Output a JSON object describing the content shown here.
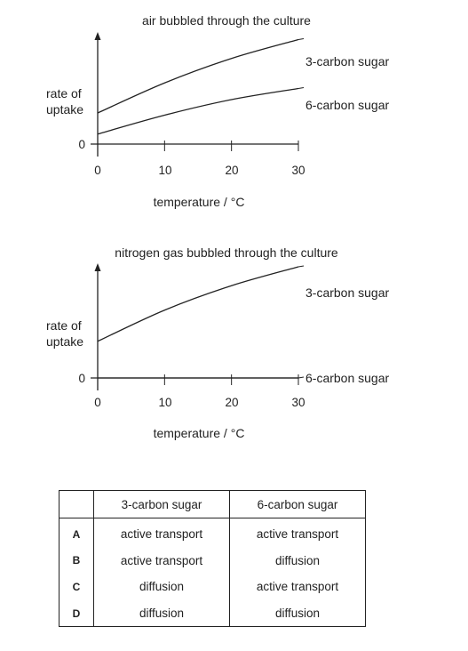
{
  "chart_data": [
    {
      "type": "line",
      "title": "air bubbled through the culture",
      "xlabel": "temperature / °C",
      "ylabel": "rate of uptake",
      "x_ticks": [
        "0",
        "10",
        "20",
        "30"
      ],
      "y_ticks": [
        "0"
      ],
      "xlim": [
        0,
        30
      ],
      "series": [
        {
          "name": "3-carbon sugar",
          "x": [
            0,
            10,
            20,
            30
          ],
          "y": [
            2.8,
            5.5,
            7.7,
            9.4
          ]
        },
        {
          "name": "6-carbon sugar",
          "x": [
            0,
            10,
            20,
            30
          ],
          "y": [
            0.9,
            2.6,
            4.0,
            5.0
          ]
        }
      ]
    },
    {
      "type": "line",
      "title": "nitrogen gas bubbled through the culture",
      "xlabel": "temperature / °C",
      "ylabel": "rate of uptake",
      "x_ticks": [
        "0",
        "10",
        "20",
        "30"
      ],
      "y_ticks": [
        "0"
      ],
      "xlim": [
        0,
        30
      ],
      "series": [
        {
          "name": "3-carbon sugar",
          "x": [
            0,
            10,
            20,
            30
          ],
          "y": [
            3.3,
            6.1,
            8.3,
            10.0
          ]
        },
        {
          "name": "6-carbon sugar",
          "x": [
            0,
            10,
            20,
            30
          ],
          "y": [
            0,
            0,
            0,
            0
          ]
        }
      ]
    }
  ],
  "table": {
    "headers": [
      "",
      "3-carbon sugar",
      "6-carbon sugar"
    ],
    "rows": [
      {
        "letter": "A",
        "carbon3": "active transport",
        "carbon6": "active transport"
      },
      {
        "letter": "B",
        "carbon3": "active transport",
        "carbon6": "diffusion"
      },
      {
        "letter": "C",
        "carbon3": "diffusion",
        "carbon6": "active transport"
      },
      {
        "letter": "D",
        "carbon3": "diffusion",
        "carbon6": "diffusion"
      }
    ]
  }
}
